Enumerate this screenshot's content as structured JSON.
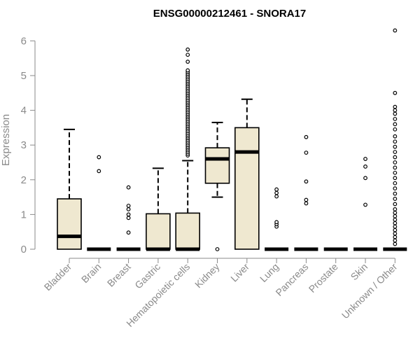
{
  "chart_data": {
    "type": "boxplot",
    "title": "ENSG00000212461 - SNORA17",
    "xlabel": "",
    "ylabel": "Expression",
    "ylim": [
      0,
      6.3
    ],
    "yticks": [
      0,
      1,
      2,
      3,
      4,
      5,
      6
    ],
    "grid": false,
    "colors": {
      "box_fill": "#efe8d0",
      "stroke": "#000000",
      "axis": "#8a8a8a",
      "label": "#8a8a8a"
    },
    "categories": [
      "Bladder",
      "Brain",
      "Breast",
      "Gastric",
      "Hematopoietic cells",
      "Kidney",
      "Liver",
      "Lung",
      "Pancreas",
      "Prostate",
      "Skin",
      "Unknown / Other"
    ],
    "boxes": [
      {
        "category": "Bladder",
        "q1": 0,
        "median": 0.37,
        "q3": 1.45,
        "whisker_low": 0,
        "whisker_high": 3.45,
        "outliers": []
      },
      {
        "category": "Brain",
        "q1": 0,
        "median": 0,
        "q3": 0,
        "whisker_low": 0,
        "whisker_high": 0,
        "outliers": [
          2.25,
          2.65
        ]
      },
      {
        "category": "Breast",
        "q1": 0,
        "median": 0,
        "q3": 0,
        "whisker_low": 0,
        "whisker_high": 0,
        "outliers": [
          0.48,
          0.9,
          1.0,
          1.15,
          1.25,
          1.78
        ]
      },
      {
        "category": "Gastric",
        "q1": 0,
        "median": 0,
        "q3": 1.02,
        "whisker_low": 0,
        "whisker_high": 2.33,
        "outliers": []
      },
      {
        "category": "Hematopoietic cells",
        "q1": 0,
        "median": 0,
        "q3": 1.04,
        "whisker_low": 0,
        "whisker_high": 2.55,
        "outliers": [
          2.7,
          2.75,
          2.8,
          2.85,
          2.9,
          2.95,
          3.0,
          3.05,
          3.1,
          3.15,
          3.2,
          3.25,
          3.3,
          3.35,
          3.4,
          3.45,
          3.5,
          3.55,
          3.6,
          3.65,
          3.7,
          3.75,
          3.8,
          3.85,
          3.9,
          3.95,
          4.0,
          4.05,
          4.1,
          4.15,
          4.2,
          4.25,
          4.3,
          4.35,
          4.4,
          4.45,
          4.5,
          4.55,
          4.6,
          4.65,
          4.7,
          4.75,
          4.8,
          4.85,
          4.9,
          4.95,
          5.0,
          5.05,
          5.1,
          5.15,
          5.4,
          5.6,
          5.75
        ]
      },
      {
        "category": "Kidney",
        "q1": 1.9,
        "median": 2.6,
        "q3": 2.92,
        "whisker_low": 1.5,
        "whisker_high": 3.65,
        "outliers": [
          0
        ]
      },
      {
        "category": "Liver",
        "q1": 0,
        "median": 2.8,
        "q3": 3.5,
        "whisker_low": 0,
        "whisker_high": 4.32,
        "outliers": []
      },
      {
        "category": "Lung",
        "q1": 0,
        "median": 0,
        "q3": 0,
        "whisker_low": 0,
        "whisker_high": 0,
        "outliers": [
          0.65,
          0.72,
          0.78,
          1.52,
          1.62,
          1.72
        ]
      },
      {
        "category": "Pancreas",
        "q1": 0,
        "median": 0,
        "q3": 0,
        "whisker_low": 0,
        "whisker_high": 0,
        "outliers": [
          1.32,
          1.42,
          1.95,
          2.78,
          3.23
        ]
      },
      {
        "category": "Prostate",
        "q1": 0,
        "median": 0,
        "q3": 0,
        "whisker_low": 0,
        "whisker_high": 0,
        "outliers": []
      },
      {
        "category": "Skin",
        "q1": 0,
        "median": 0,
        "q3": 0,
        "whisker_low": 0,
        "whisker_high": 0,
        "outliers": [
          1.28,
          2.05,
          2.38,
          2.6
        ]
      },
      {
        "category": "Unknown / Other",
        "q1": 0,
        "median": 0,
        "q3": 0,
        "whisker_low": 0,
        "whisker_high": 0,
        "outliers": [
          0.15,
          0.25,
          0.35,
          0.45,
          0.55,
          0.65,
          0.75,
          0.85,
          0.95,
          1.05,
          1.15,
          1.3,
          1.45,
          1.6,
          1.75,
          1.9,
          2.05,
          2.2,
          2.35,
          2.5,
          2.65,
          2.8,
          2.95,
          3.1,
          3.25,
          3.45,
          3.6,
          3.75,
          3.9,
          4.0,
          4.1,
          4.5,
          6.3
        ]
      }
    ]
  }
}
